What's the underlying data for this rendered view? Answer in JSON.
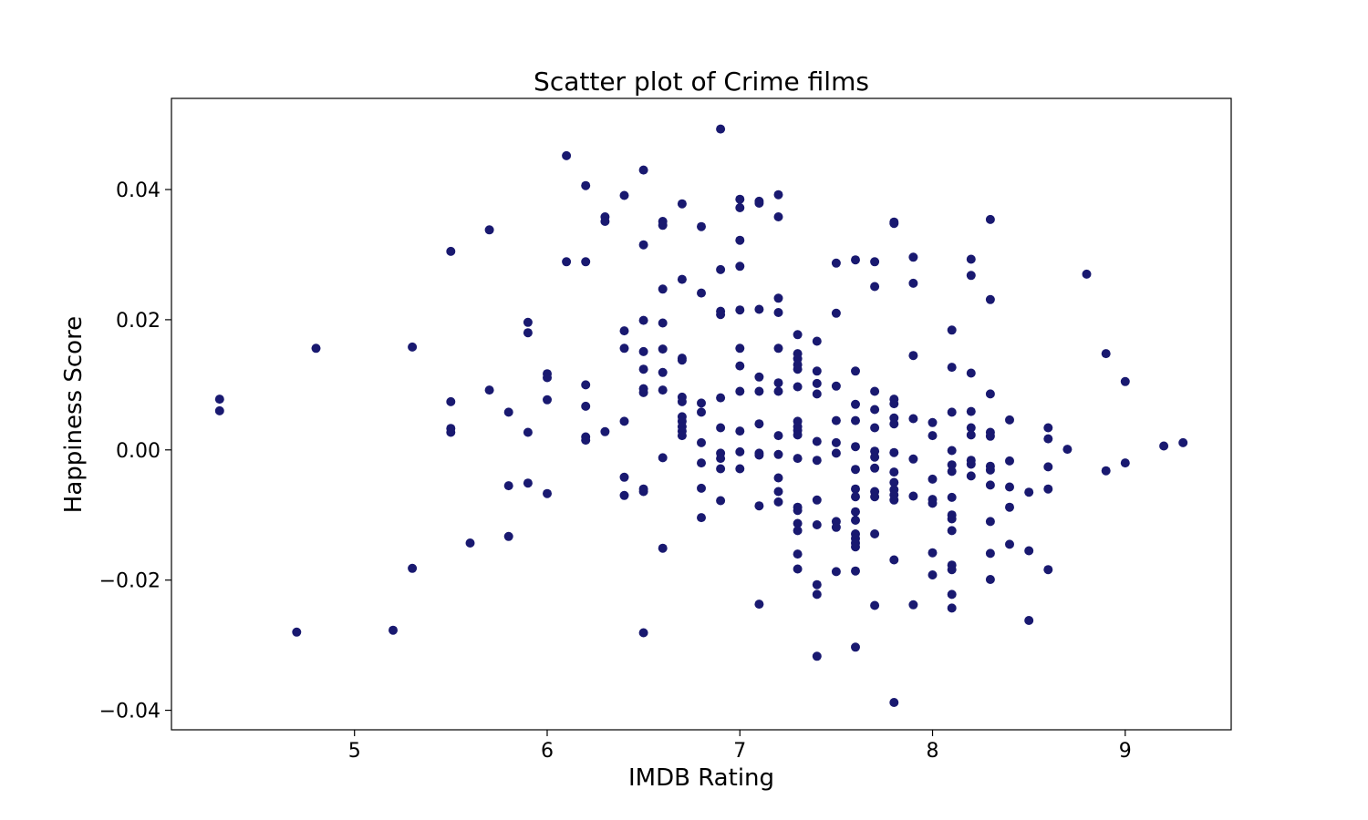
{
  "chart_data": {
    "type": "scatter",
    "title": "Scatter plot of Crime films",
    "xlabel": "IMDB Rating",
    "ylabel": "Happiness Score",
    "xlim": [
      4.05,
      9.55
    ],
    "ylim": [
      -0.043,
      0.054
    ],
    "xticks": [
      5,
      6,
      7,
      8,
      9
    ],
    "xtick_labels": [
      "5",
      "6",
      "7",
      "8",
      "9"
    ],
    "yticks": [
      -0.04,
      -0.02,
      0.0,
      0.02,
      0.04
    ],
    "ytick_labels": [
      "−0.04",
      "−0.02",
      "0.00",
      "0.02",
      "0.04"
    ],
    "grid": false,
    "marker_color": "#191970",
    "series": [
      {
        "points": [
          [
            4.3,
            0.0078
          ],
          [
            4.3,
            0.006
          ],
          [
            4.7,
            -0.028
          ],
          [
            4.8,
            0.0156
          ],
          [
            5.2,
            -0.0277
          ],
          [
            5.3,
            0.0158
          ],
          [
            5.3,
            -0.0182
          ],
          [
            5.5,
            0.0305
          ],
          [
            5.5,
            0.0074
          ],
          [
            5.5,
            0.0033
          ],
          [
            5.5,
            0.0027
          ],
          [
            5.6,
            -0.0143
          ],
          [
            5.7,
            0.0338
          ],
          [
            5.7,
            0.0092
          ],
          [
            5.8,
            0.0058
          ],
          [
            5.8,
            -0.0055
          ],
          [
            5.8,
            -0.0133
          ],
          [
            5.9,
            0.0196
          ],
          [
            5.9,
            0.018
          ],
          [
            5.9,
            0.0027
          ],
          [
            5.9,
            -0.0051
          ],
          [
            6.0,
            0.0117
          ],
          [
            6.0,
            0.0111
          ],
          [
            6.0,
            0.0077
          ],
          [
            6.0,
            -0.0067
          ],
          [
            6.1,
            0.0452
          ],
          [
            6.1,
            0.0289
          ],
          [
            6.2,
            0.0406
          ],
          [
            6.2,
            0.0289
          ],
          [
            6.2,
            0.01
          ],
          [
            6.2,
            0.0067
          ],
          [
            6.2,
            0.002
          ],
          [
            6.2,
            0.0015
          ],
          [
            6.3,
            0.0358
          ],
          [
            6.3,
            0.0351
          ],
          [
            6.3,
            0.0028
          ],
          [
            6.4,
            0.0391
          ],
          [
            6.4,
            0.0183
          ],
          [
            6.4,
            0.0156
          ],
          [
            6.4,
            0.0044
          ],
          [
            6.4,
            -0.0042
          ],
          [
            6.4,
            -0.007
          ],
          [
            6.5,
            0.043
          ],
          [
            6.5,
            0.0315
          ],
          [
            6.5,
            0.0199
          ],
          [
            6.5,
            0.0151
          ],
          [
            6.5,
            0.0124
          ],
          [
            6.5,
            0.0094
          ],
          [
            6.5,
            0.0088
          ],
          [
            6.5,
            -0.006
          ],
          [
            6.5,
            -0.0064
          ],
          [
            6.5,
            -0.0281
          ],
          [
            6.6,
            0.0351
          ],
          [
            6.6,
            0.0345
          ],
          [
            6.6,
            0.0247
          ],
          [
            6.6,
            0.0195
          ],
          [
            6.6,
            0.0155
          ],
          [
            6.6,
            0.0119
          ],
          [
            6.6,
            0.0092
          ],
          [
            6.6,
            -0.0012
          ],
          [
            6.6,
            -0.0151
          ],
          [
            6.7,
            0.0378
          ],
          [
            6.7,
            0.0262
          ],
          [
            6.7,
            0.0141
          ],
          [
            6.7,
            0.0138
          ],
          [
            6.7,
            0.0081
          ],
          [
            6.7,
            0.0074
          ],
          [
            6.7,
            0.0051
          ],
          [
            6.7,
            0.0044
          ],
          [
            6.7,
            0.0036
          ],
          [
            6.7,
            0.0029
          ],
          [
            6.7,
            0.0022
          ],
          [
            6.8,
            0.0343
          ],
          [
            6.8,
            0.0241
          ],
          [
            6.8,
            0.0072
          ],
          [
            6.8,
            0.0058
          ],
          [
            6.8,
            0.0011
          ],
          [
            6.8,
            -0.002
          ],
          [
            6.8,
            -0.0059
          ],
          [
            6.8,
            -0.0104
          ],
          [
            6.9,
            0.0493
          ],
          [
            6.9,
            0.0277
          ],
          [
            6.9,
            0.0213
          ],
          [
            6.9,
            0.0208
          ],
          [
            6.9,
            0.008
          ],
          [
            6.9,
            0.0034
          ],
          [
            6.9,
            -0.0005
          ],
          [
            6.9,
            -0.0013
          ],
          [
            6.9,
            -0.0029
          ],
          [
            6.9,
            -0.0078
          ],
          [
            7.0,
            0.0385
          ],
          [
            7.0,
            0.0372
          ],
          [
            7.0,
            0.0322
          ],
          [
            7.0,
            0.0282
          ],
          [
            7.0,
            0.0215
          ],
          [
            7.0,
            0.0156
          ],
          [
            7.0,
            0.0129
          ],
          [
            7.0,
            0.009
          ],
          [
            7.0,
            0.0029
          ],
          [
            7.0,
            -0.0003
          ],
          [
            7.0,
            -0.0029
          ],
          [
            7.1,
            0.0382
          ],
          [
            7.1,
            0.0379
          ],
          [
            7.1,
            0.0216
          ],
          [
            7.1,
            0.0112
          ],
          [
            7.1,
            0.009
          ],
          [
            7.1,
            0.004
          ],
          [
            7.1,
            -0.0005
          ],
          [
            7.1,
            -0.0008
          ],
          [
            7.1,
            -0.0086
          ],
          [
            7.1,
            -0.0237
          ],
          [
            7.2,
            0.0392
          ],
          [
            7.2,
            0.0358
          ],
          [
            7.2,
            0.0233
          ],
          [
            7.2,
            0.0211
          ],
          [
            7.2,
            0.0156
          ],
          [
            7.2,
            0.0103
          ],
          [
            7.2,
            0.009
          ],
          [
            7.2,
            0.0022
          ],
          [
            7.2,
            -0.0007
          ],
          [
            7.2,
            -0.0043
          ],
          [
            7.2,
            -0.0064
          ],
          [
            7.2,
            -0.008
          ],
          [
            7.3,
            0.0177
          ],
          [
            7.3,
            0.0148
          ],
          [
            7.3,
            0.014
          ],
          [
            7.3,
            0.0131
          ],
          [
            7.3,
            0.0124
          ],
          [
            7.3,
            0.0097
          ],
          [
            7.3,
            0.0044
          ],
          [
            7.3,
            0.0036
          ],
          [
            7.3,
            0.003
          ],
          [
            7.3,
            0.0023
          ],
          [
            7.3,
            -0.0013
          ],
          [
            7.3,
            -0.0088
          ],
          [
            7.3,
            -0.0093
          ],
          [
            7.3,
            -0.0113
          ],
          [
            7.3,
            -0.0124
          ],
          [
            7.3,
            -0.016
          ],
          [
            7.3,
            -0.0183
          ],
          [
            7.4,
            0.0167
          ],
          [
            7.4,
            0.0121
          ],
          [
            7.4,
            0.0102
          ],
          [
            7.4,
            0.0086
          ],
          [
            7.4,
            0.0013
          ],
          [
            7.4,
            -0.0016
          ],
          [
            7.4,
            -0.0077
          ],
          [
            7.4,
            -0.0115
          ],
          [
            7.4,
            -0.0207
          ],
          [
            7.4,
            -0.0222
          ],
          [
            7.4,
            -0.0317
          ],
          [
            7.5,
            0.0287
          ],
          [
            7.5,
            0.021
          ],
          [
            7.5,
            0.0098
          ],
          [
            7.5,
            0.0045
          ],
          [
            7.5,
            0.0011
          ],
          [
            7.5,
            -0.0005
          ],
          [
            7.5,
            -0.011
          ],
          [
            7.5,
            -0.0119
          ],
          [
            7.5,
            -0.0187
          ],
          [
            7.6,
            0.0292
          ],
          [
            7.6,
            0.0121
          ],
          [
            7.6,
            0.007
          ],
          [
            7.6,
            0.0045
          ],
          [
            7.6,
            0.0005
          ],
          [
            7.6,
            -0.003
          ],
          [
            7.6,
            -0.006
          ],
          [
            7.6,
            -0.0072
          ],
          [
            7.6,
            -0.0095
          ],
          [
            7.6,
            -0.0108
          ],
          [
            7.6,
            -0.0129
          ],
          [
            7.6,
            -0.0136
          ],
          [
            7.6,
            -0.0143
          ],
          [
            7.6,
            -0.0149
          ],
          [
            7.6,
            -0.0186
          ],
          [
            7.6,
            -0.0303
          ],
          [
            7.7,
            0.0289
          ],
          [
            7.7,
            0.0251
          ],
          [
            7.7,
            0.009
          ],
          [
            7.7,
            0.0062
          ],
          [
            7.7,
            0.0034
          ],
          [
            7.7,
            -0.0002
          ],
          [
            7.7,
            -0.0011
          ],
          [
            7.7,
            -0.0028
          ],
          [
            7.7,
            -0.0064
          ],
          [
            7.7,
            -0.0072
          ],
          [
            7.7,
            -0.0129
          ],
          [
            7.7,
            -0.0239
          ],
          [
            7.8,
            0.035
          ],
          [
            7.8,
            0.0348
          ],
          [
            7.8,
            0.0078
          ],
          [
            7.8,
            0.0071
          ],
          [
            7.8,
            0.0049
          ],
          [
            7.8,
            0.004
          ],
          [
            7.8,
            -0.0004
          ],
          [
            7.8,
            -0.0034
          ],
          [
            7.8,
            -0.005
          ],
          [
            7.8,
            -0.0061
          ],
          [
            7.8,
            -0.0069
          ],
          [
            7.8,
            -0.0077
          ],
          [
            7.8,
            -0.0169
          ],
          [
            7.8,
            -0.0388
          ],
          [
            7.9,
            0.0296
          ],
          [
            7.9,
            0.0256
          ],
          [
            7.9,
            0.0145
          ],
          [
            7.9,
            0.0048
          ],
          [
            7.9,
            -0.0014
          ],
          [
            7.9,
            -0.0071
          ],
          [
            7.9,
            -0.0238
          ],
          [
            8.0,
            0.0042
          ],
          [
            8.0,
            0.0022
          ],
          [
            8.0,
            -0.0045
          ],
          [
            8.0,
            -0.0076
          ],
          [
            8.0,
            -0.0082
          ],
          [
            8.0,
            -0.0158
          ],
          [
            8.0,
            -0.0192
          ],
          [
            8.1,
            0.0184
          ],
          [
            8.1,
            0.0127
          ],
          [
            8.1,
            0.0058
          ],
          [
            8.1,
            -0.0001
          ],
          [
            8.1,
            -0.0023
          ],
          [
            8.1,
            -0.0033
          ],
          [
            8.1,
            -0.0073
          ],
          [
            8.1,
            -0.01
          ],
          [
            8.1,
            -0.0106
          ],
          [
            8.1,
            -0.0124
          ],
          [
            8.1,
            -0.0177
          ],
          [
            8.1,
            -0.0184
          ],
          [
            8.1,
            -0.0222
          ],
          [
            8.1,
            -0.0243
          ],
          [
            8.2,
            0.0293
          ],
          [
            8.2,
            0.0268
          ],
          [
            8.2,
            0.0118
          ],
          [
            8.2,
            0.0059
          ],
          [
            8.2,
            0.0034
          ],
          [
            8.2,
            0.0023
          ],
          [
            8.2,
            -0.0016
          ],
          [
            8.2,
            -0.0022
          ],
          [
            8.2,
            -0.004
          ],
          [
            8.3,
            0.0354
          ],
          [
            8.3,
            0.0231
          ],
          [
            8.3,
            0.0086
          ],
          [
            8.3,
            0.0027
          ],
          [
            8.3,
            0.0021
          ],
          [
            8.3,
            -0.0025
          ],
          [
            8.3,
            -0.0031
          ],
          [
            8.3,
            -0.0054
          ],
          [
            8.3,
            -0.011
          ],
          [
            8.3,
            -0.0159
          ],
          [
            8.3,
            -0.0199
          ],
          [
            8.4,
            0.0046
          ],
          [
            8.4,
            -0.0017
          ],
          [
            8.4,
            -0.0057
          ],
          [
            8.4,
            -0.0088
          ],
          [
            8.4,
            -0.0145
          ],
          [
            8.5,
            -0.0065
          ],
          [
            8.5,
            -0.0155
          ],
          [
            8.5,
            -0.0262
          ],
          [
            8.6,
            0.0034
          ],
          [
            8.6,
            0.0017
          ],
          [
            8.6,
            -0.0026
          ],
          [
            8.6,
            -0.006
          ],
          [
            8.6,
            -0.0184
          ],
          [
            8.7,
            0.0001
          ],
          [
            8.8,
            0.027
          ],
          [
            8.9,
            0.0148
          ],
          [
            8.9,
            -0.0032
          ],
          [
            9.0,
            0.0105
          ],
          [
            9.0,
            -0.002
          ],
          [
            9.2,
            0.0006
          ],
          [
            9.3,
            0.0011
          ]
        ]
      }
    ]
  }
}
